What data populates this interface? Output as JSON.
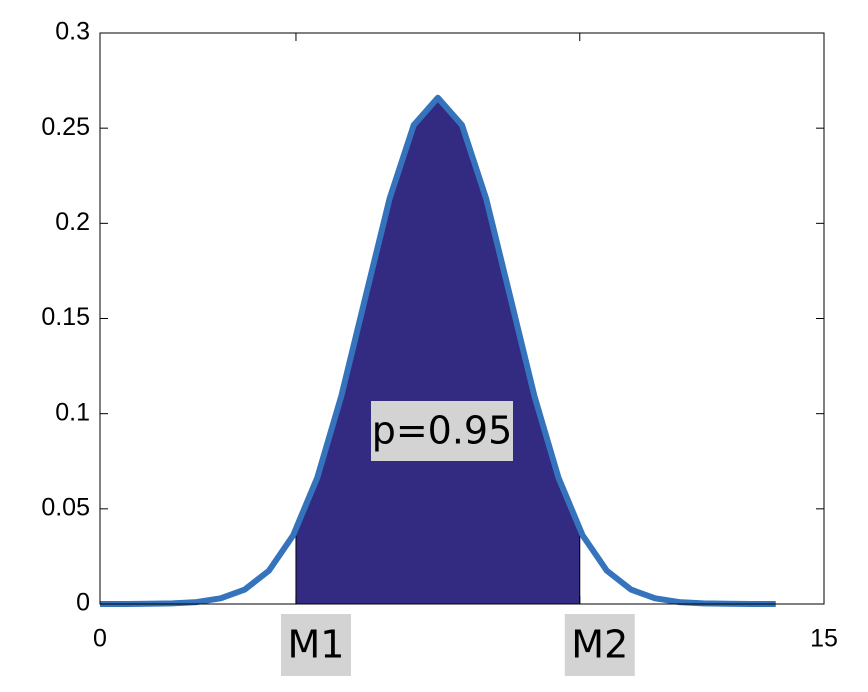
{
  "chart_data": {
    "type": "area",
    "x": [
      0,
      0.5,
      1,
      1.5,
      2,
      2.5,
      3,
      3.5,
      4,
      4.5,
      5,
      5.5,
      6,
      6.5,
      7,
      7.5,
      8,
      8.5,
      9,
      9.5,
      10,
      10.5,
      11,
      11.5,
      12,
      12.5,
      13,
      13.5,
      14
    ],
    "values": [
      0,
      0,
      0.0001,
      0.0003,
      0.001,
      0.003,
      0.0076,
      0.0175,
      0.036,
      0.0663,
      0.1093,
      0.1613,
      0.213,
      0.2516,
      0.266,
      0.2516,
      0.213,
      0.1613,
      0.1093,
      0.0663,
      0.036,
      0.0175,
      0.0076,
      0.003,
      0.001,
      0.0003,
      0.0001,
      0,
      0
    ],
    "color": "#3574bd",
    "fill_color": "#332a82",
    "annotation": "p=0.95",
    "xlim": [
      0,
      15
    ],
    "xticks": [
      0,
      {
        "value": 4.06,
        "label": "M1"
      },
      {
        "value": 9.94,
        "label": "M2"
      },
      15
    ],
    "ylim": [
      0,
      0.3
    ],
    "yticks": [
      0,
      0.05,
      0.1,
      0.15,
      0.2,
      0.25,
      0.3
    ]
  }
}
